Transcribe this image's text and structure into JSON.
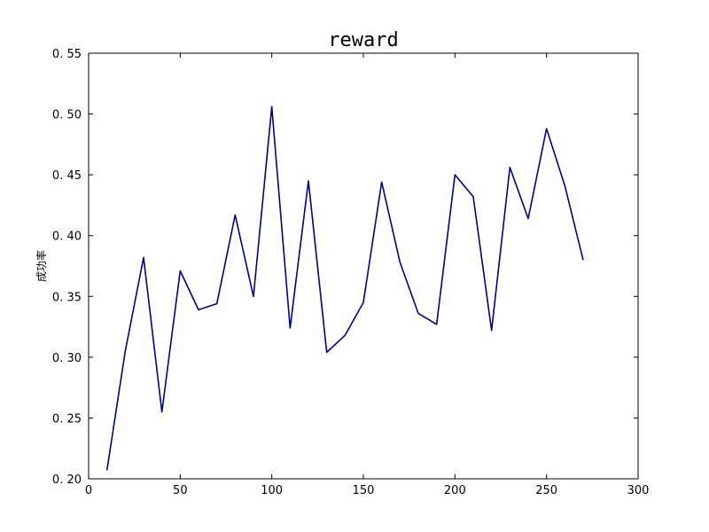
{
  "chart_data": {
    "type": "line",
    "title": "reward",
    "xlabel": "",
    "ylabel": "成功率",
    "xlim": [
      0,
      300
    ],
    "ylim": [
      0.2,
      0.55
    ],
    "xticks": [
      0,
      50,
      100,
      150,
      200,
      250,
      300
    ],
    "yticks": [
      0.2,
      0.25,
      0.3,
      0.35,
      0.4,
      0.45,
      0.5,
      0.55
    ],
    "xtick_labels": [
      "0",
      "50",
      "100",
      "150",
      "200",
      "250",
      "300"
    ],
    "ytick_labels": [
      "0. 20",
      "0. 25",
      "0. 30",
      "0. 35",
      "0. 40",
      "0. 45",
      "0. 50",
      "0. 55"
    ],
    "grid": false,
    "series": [
      {
        "color": "#00008b",
        "x": [
          10,
          20,
          30,
          40,
          50,
          60,
          70,
          80,
          90,
          100,
          110,
          120,
          130,
          140,
          150,
          160,
          170,
          180,
          190,
          200,
          210,
          220,
          230,
          240,
          250,
          260,
          270
        ],
        "y": [
          0.207,
          0.305,
          0.382,
          0.255,
          0.371,
          0.339,
          0.344,
          0.417,
          0.35,
          0.506,
          0.324,
          0.445,
          0.304,
          0.318,
          0.345,
          0.444,
          0.378,
          0.336,
          0.327,
          0.45,
          0.432,
          0.322,
          0.456,
          0.414,
          0.488,
          0.441,
          0.38
        ]
      }
    ]
  }
}
